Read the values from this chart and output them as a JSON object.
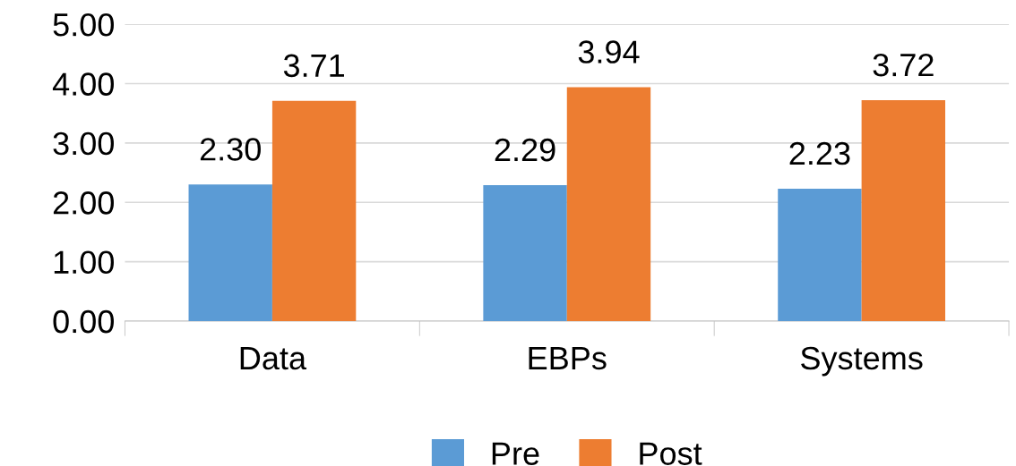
{
  "chart_data": {
    "type": "bar",
    "categories": [
      "Data",
      "EBPs",
      "Systems"
    ],
    "series": [
      {
        "name": "Pre",
        "color": "#5b9bd5",
        "values": [
          2.3,
          2.29,
          2.23
        ],
        "value_labels": [
          "2.30",
          "2.29",
          "2.23"
        ]
      },
      {
        "name": "Post",
        "color": "#ed7d31",
        "values": [
          3.71,
          3.94,
          3.72
        ],
        "value_labels": [
          "3.71",
          "3.94",
          "3.72"
        ]
      }
    ],
    "ylim": [
      0,
      5
    ],
    "yticks": [
      {
        "value": 0,
        "label": "0.00"
      },
      {
        "value": 1,
        "label": "1.00"
      },
      {
        "value": 2,
        "label": "2.00"
      },
      {
        "value": 3,
        "label": "3.00"
      },
      {
        "value": 4,
        "label": "4.00"
      },
      {
        "value": 5,
        "label": "5.00"
      }
    ],
    "grid": "y",
    "legend": "bottom"
  }
}
